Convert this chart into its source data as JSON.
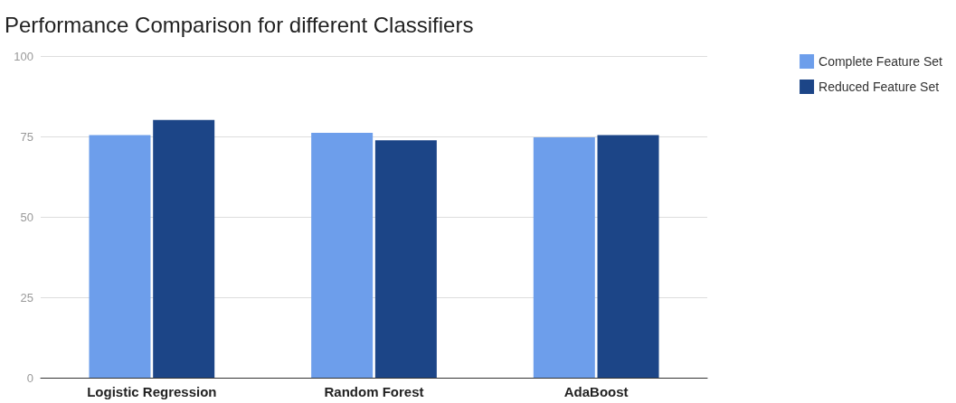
{
  "chart_data": {
    "type": "bar",
    "title": "Performance Comparison for different Classifiers",
    "categories": [
      "Logistic Regression",
      "Random Forest",
      "AdaBoost"
    ],
    "series": [
      {
        "name": "Complete Feature Set",
        "color": "#6d9eeb",
        "values": [
          75.4,
          76.1,
          74.7
        ]
      },
      {
        "name": "Reduced Feature Set",
        "color": "#1c4587",
        "values": [
          80.1,
          73.8,
          75.4
        ]
      }
    ],
    "ylim": [
      0,
      100
    ],
    "yticks": [
      0,
      25,
      50,
      75,
      100
    ],
    "grid": "y",
    "legend": "top right"
  }
}
